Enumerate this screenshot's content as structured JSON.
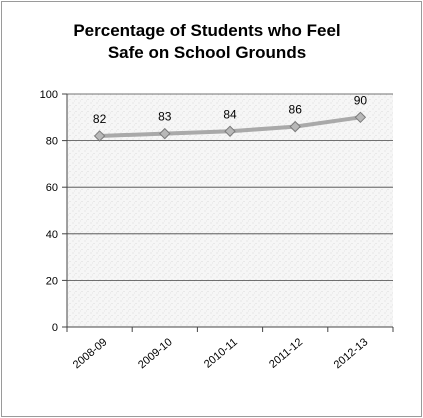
{
  "chart_data": {
    "type": "line",
    "title_lines": [
      "Percentage of Students who Feel",
      "Safe on School Grounds"
    ],
    "categories": [
      "2008-09",
      "2009-10",
      "2010-11",
      "2011-12",
      "2012-13"
    ],
    "series": [
      {
        "values": [
          82,
          83,
          84,
          86,
          90
        ]
      }
    ],
    "data_labels": [
      "82",
      "83",
      "84",
      "86",
      "90"
    ],
    "ylim": [
      0,
      100
    ],
    "yticks": [
      0,
      20,
      40,
      60,
      80,
      100
    ],
    "ytick_labels": [
      "0",
      "20",
      "40",
      "60",
      "80",
      "100"
    ],
    "grid": true,
    "legend": "none",
    "xlabel": "",
    "ylabel": "",
    "colors": {
      "line": "#a9a9a9",
      "marker": "#b8b8b8",
      "plot_background": "#f0f0f0",
      "gridline": "#444444"
    }
  }
}
